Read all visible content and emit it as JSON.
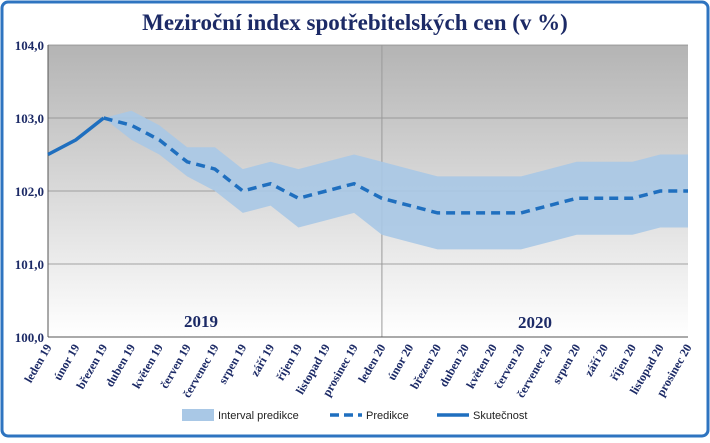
{
  "chart_data": {
    "type": "line",
    "title": "Meziroční index spotřebitelských cen (v %)",
    "categories": [
      "leden 19",
      "únor 19",
      "březen 19",
      "duben 19",
      "květen 19",
      "červen 19",
      "červenec 19",
      "srpen 19",
      "září 19",
      "říjen 19",
      "listopad 19",
      "prosinec 19",
      "leden 20",
      "únor 20",
      "březen 20",
      "duben 20",
      "květen 20",
      "červen 20",
      "červenec 20",
      "srpen 20",
      "září 20",
      "říjen 20",
      "listopad 20",
      "prosinec 20"
    ],
    "series": [
      {
        "name": "Interval predikce",
        "color": "#a9c8e6",
        "upper": [
          null,
          null,
          103.0,
          103.1,
          102.9,
          102.6,
          102.6,
          102.3,
          102.4,
          102.3,
          102.4,
          102.5,
          102.4,
          102.3,
          102.2,
          102.2,
          102.2,
          102.2,
          102.3,
          102.4,
          102.4,
          102.4,
          102.5,
          102.5
        ],
        "lower": [
          null,
          null,
          103.0,
          102.7,
          102.5,
          102.2,
          102.0,
          101.7,
          101.8,
          101.5,
          101.6,
          101.7,
          101.4,
          101.3,
          101.2,
          101.2,
          101.2,
          101.2,
          101.3,
          101.4,
          101.4,
          101.4,
          101.5,
          101.5
        ]
      },
      {
        "name": "Predikce",
        "color": "#1f6fbf",
        "dashed": true,
        "values": [
          null,
          null,
          103.0,
          102.9,
          102.7,
          102.4,
          102.3,
          102.0,
          102.1,
          101.9,
          102.0,
          102.1,
          101.9,
          101.8,
          101.7,
          101.7,
          101.7,
          101.7,
          101.8,
          101.9,
          101.9,
          101.9,
          102.0,
          102.0
        ]
      },
      {
        "name": "Skutečnost",
        "color": "#1f6fbf",
        "values": [
          102.5,
          102.7,
          103.0,
          null,
          null,
          null,
          null,
          null,
          null,
          null,
          null,
          null,
          null,
          null,
          null,
          null,
          null,
          null,
          null,
          null,
          null,
          null,
          null,
          null
        ]
      }
    ],
    "annotations": [
      "2019",
      "2020"
    ],
    "ylim": [
      100,
      104
    ],
    "yticks": [
      {
        "value": 100,
        "label": "100,0"
      },
      {
        "value": 101,
        "label": "101,0"
      },
      {
        "value": 102,
        "label": "102,0"
      },
      {
        "value": 103,
        "label": "103,0"
      },
      {
        "value": 104,
        "label": "104,0"
      }
    ],
    "grid": true
  }
}
